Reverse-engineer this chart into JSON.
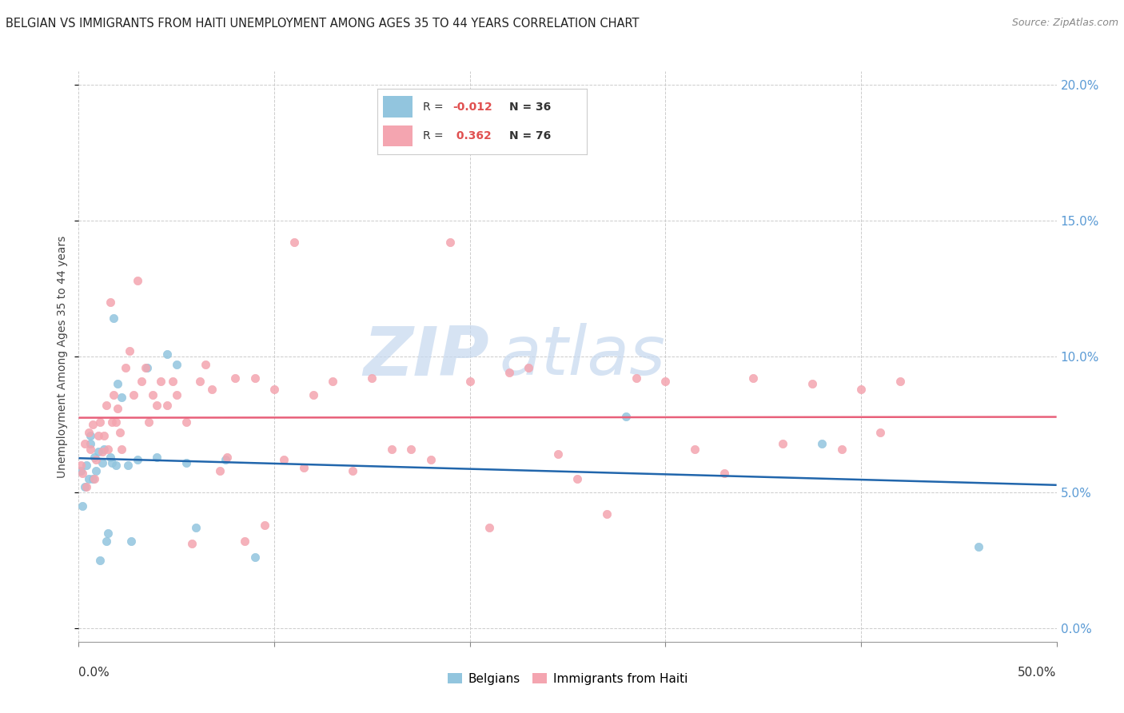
{
  "title": "BELGIAN VS IMMIGRANTS FROM HAITI UNEMPLOYMENT AMONG AGES 35 TO 44 YEARS CORRELATION CHART",
  "source": "Source: ZipAtlas.com",
  "ylabel": "Unemployment Among Ages 35 to 44 years",
  "legend_belgians": "Belgians",
  "legend_haiti": "Immigrants from Haiti",
  "r_belgians": "-0.012",
  "n_belgians": "36",
  "r_haiti": "0.362",
  "n_haiti": "76",
  "belgian_color": "#92c5de",
  "haiti_color": "#f4a5b0",
  "trend_belgian_color": "#2166ac",
  "trend_haiti_color": "#e8607a",
  "watermark_zip": "ZIP",
  "watermark_atlas": "atlas",
  "xlim": [
    0.0,
    0.5
  ],
  "ylim": [
    -0.005,
    0.205
  ],
  "belgians_x": [
    0.001,
    0.002,
    0.003,
    0.004,
    0.005,
    0.006,
    0.006,
    0.007,
    0.008,
    0.009,
    0.01,
    0.011,
    0.012,
    0.013,
    0.014,
    0.015,
    0.016,
    0.017,
    0.018,
    0.019,
    0.02,
    0.022,
    0.025,
    0.027,
    0.03,
    0.035,
    0.04,
    0.045,
    0.05,
    0.055,
    0.06,
    0.075,
    0.09,
    0.28,
    0.38,
    0.46
  ],
  "belgians_y": [
    0.058,
    0.045,
    0.052,
    0.06,
    0.055,
    0.068,
    0.071,
    0.055,
    0.063,
    0.058,
    0.065,
    0.025,
    0.061,
    0.066,
    0.032,
    0.035,
    0.063,
    0.061,
    0.114,
    0.06,
    0.09,
    0.085,
    0.06,
    0.032,
    0.062,
    0.096,
    0.063,
    0.101,
    0.097,
    0.061,
    0.037,
    0.062,
    0.026,
    0.078,
    0.068,
    0.03
  ],
  "haiti_x": [
    0.001,
    0.002,
    0.003,
    0.004,
    0.005,
    0.006,
    0.007,
    0.008,
    0.009,
    0.01,
    0.011,
    0.012,
    0.013,
    0.014,
    0.015,
    0.016,
    0.017,
    0.018,
    0.019,
    0.02,
    0.021,
    0.022,
    0.024,
    0.026,
    0.028,
    0.03,
    0.032,
    0.034,
    0.036,
    0.038,
    0.04,
    0.042,
    0.045,
    0.048,
    0.05,
    0.055,
    0.058,
    0.062,
    0.065,
    0.068,
    0.072,
    0.076,
    0.08,
    0.085,
    0.09,
    0.095,
    0.1,
    0.105,
    0.11,
    0.115,
    0.12,
    0.13,
    0.14,
    0.15,
    0.16,
    0.17,
    0.18,
    0.19,
    0.2,
    0.21,
    0.22,
    0.23,
    0.245,
    0.255,
    0.27,
    0.285,
    0.3,
    0.315,
    0.33,
    0.345,
    0.36,
    0.375,
    0.39,
    0.4,
    0.41,
    0.42
  ],
  "haiti_y": [
    0.06,
    0.057,
    0.068,
    0.052,
    0.072,
    0.066,
    0.075,
    0.055,
    0.062,
    0.071,
    0.076,
    0.065,
    0.071,
    0.082,
    0.066,
    0.12,
    0.076,
    0.086,
    0.076,
    0.081,
    0.072,
    0.066,
    0.096,
    0.102,
    0.086,
    0.128,
    0.091,
    0.096,
    0.076,
    0.086,
    0.082,
    0.091,
    0.082,
    0.091,
    0.086,
    0.076,
    0.031,
    0.091,
    0.097,
    0.088,
    0.058,
    0.063,
    0.092,
    0.032,
    0.092,
    0.038,
    0.088,
    0.062,
    0.142,
    0.059,
    0.086,
    0.091,
    0.058,
    0.092,
    0.066,
    0.066,
    0.062,
    0.142,
    0.091,
    0.037,
    0.094,
    0.096,
    0.064,
    0.055,
    0.042,
    0.092,
    0.091,
    0.066,
    0.057,
    0.092,
    0.068,
    0.09,
    0.066,
    0.088,
    0.072,
    0.091
  ]
}
